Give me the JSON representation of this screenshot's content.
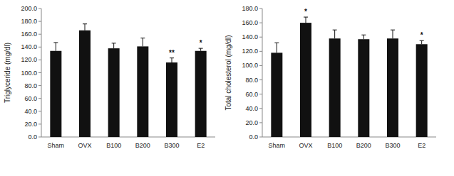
{
  "chart_data": [
    {
      "type": "bar",
      "y_label": "Triglyceride (mg/dl)",
      "categories": [
        "Sham",
        "OVX",
        "B100",
        "B200",
        "B300",
        "E2"
      ],
      "values": [
        134,
        166,
        138,
        141,
        116,
        134
      ],
      "errors": [
        13,
        10,
        8,
        13,
        7,
        4
      ],
      "color": "#111111",
      "ylim": [
        0,
        200
      ],
      "yticks": [
        {
          "value": 0,
          "label": "0.0"
        },
        {
          "value": 20,
          "label": "20.0"
        },
        {
          "value": 40,
          "label": "40.0"
        },
        {
          "value": 60,
          "label": "60.0"
        },
        {
          "value": 80,
          "label": "80.0"
        },
        {
          "value": 100,
          "label": "100.0"
        },
        {
          "value": 120,
          "label": "120.0"
        },
        {
          "value": 140,
          "label": "140.0"
        },
        {
          "value": 160,
          "label": "160.0"
        },
        {
          "value": 180,
          "label": "180.0"
        },
        {
          "value": 200,
          "label": "200.0"
        }
      ],
      "grid": false,
      "annotations": [
        {
          "category": "B300",
          "text": "**"
        },
        {
          "category": "E2",
          "text": "*"
        }
      ]
    },
    {
      "type": "bar",
      "y_label": "Total cholesterol (mg/dl)",
      "categories": [
        "Sham",
        "OVX",
        "B100",
        "B200",
        "B300",
        "E2"
      ],
      "values": [
        118,
        160,
        138,
        137,
        138,
        130
      ],
      "errors": [
        14,
        8,
        12,
        6,
        12,
        5
      ],
      "color": "#111111",
      "ylim": [
        0,
        180
      ],
      "yticks": [
        {
          "value": 0,
          "label": "0.0"
        },
        {
          "value": 20,
          "label": "20.0"
        },
        {
          "value": 40,
          "label": "40.0"
        },
        {
          "value": 60,
          "label": "60.0"
        },
        {
          "value": 80,
          "label": "80.0"
        },
        {
          "value": 100,
          "label": "100.0"
        },
        {
          "value": 120,
          "label": "120.0"
        },
        {
          "value": 140,
          "label": "140.0"
        },
        {
          "value": 160,
          "label": "160.0"
        },
        {
          "value": 180,
          "label": "180.0"
        }
      ],
      "grid": false,
      "annotations": [
        {
          "category": "OVX",
          "text": "*"
        },
        {
          "category": "E2",
          "text": "*"
        }
      ]
    }
  ]
}
